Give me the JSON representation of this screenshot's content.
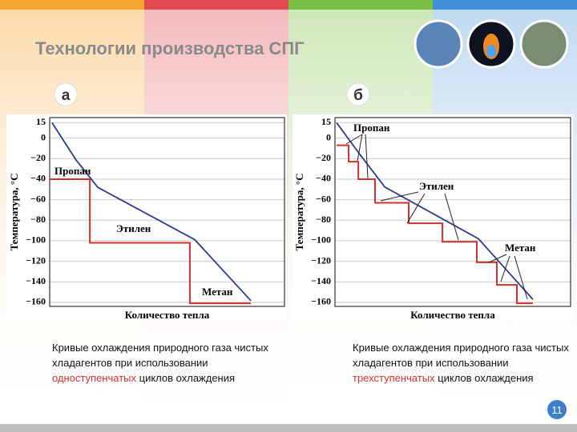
{
  "slide": {
    "title": "Технологии производства СПГ",
    "panel_labels": [
      "а",
      "б"
    ],
    "captions": [
      [
        "Кривые охлаждения природного газа чистых хладагентов при использовании ",
        "одноступенчатых",
        " циклов охлаждения"
      ],
      [
        "Кривые охлаждения природного газа чистых хладагентов при использовании ",
        "трехступенчатых",
        " циклов охлаждения"
      ]
    ],
    "page_number": "11"
  },
  "chart_data": [
    {
      "type": "line",
      "xlabel": "Количество тепла",
      "ylabel": "Температура, °С",
      "xlim": [
        0,
        100
      ],
      "ylim": [
        -164,
        20
      ],
      "yticks": [
        15,
        0,
        {
          "value": -20,
          "label": "−20"
        },
        {
          "value": -40,
          "label": "−40"
        },
        {
          "value": -60,
          "label": "−60"
        },
        {
          "value": -80,
          "label": "−80"
        },
        {
          "value": -100,
          "label": "−100"
        },
        {
          "value": -120,
          "label": "−120"
        },
        {
          "value": -140,
          "label": "−140"
        },
        {
          "value": -160,
          "label": "−160"
        }
      ],
      "grid": true,
      "annotations": [
        "Пропан",
        "Этилен",
        "Метан"
      ],
      "series": [
        {
          "color": "#2b3990",
          "x": [
            1,
            11.3,
            20.5,
            61.8,
            85.7
          ],
          "values": [
            15,
            -21.5,
            -48,
            -99,
            -158.5
          ]
        },
        {
          "color": "#d2312d",
          "x": [
            0,
            17.1,
            17.1,
            59.7,
            59.7,
            85.7
          ],
          "values": [
            -40,
            -40,
            -102,
            -102,
            -161,
            -161
          ]
        }
      ]
    },
    {
      "type": "line",
      "xlabel": "Количество тепла",
      "ylabel": "Температура, °С",
      "xlim": [
        0,
        100
      ],
      "ylim": [
        -164,
        20
      ],
      "yticks": [
        15,
        0,
        {
          "value": -20,
          "label": "−20"
        },
        {
          "value": -40,
          "label": "−40"
        },
        {
          "value": -60,
          "label": "−60"
        },
        {
          "value": -80,
          "label": "−80"
        },
        {
          "value": -100,
          "label": "−100"
        },
        {
          "value": -120,
          "label": "−120"
        },
        {
          "value": -140,
          "label": "−140"
        },
        {
          "value": -160,
          "label": "−160"
        }
      ],
      "grid": true,
      "annotations": [
        "Пропан",
        "Этилен",
        "Метан"
      ],
      "series": [
        {
          "color": "#2b3990",
          "x": [
            0.7,
            9.9,
            21.1,
            60.9,
            84
          ],
          "values": [
            15,
            -13.8,
            -47.6,
            -98.1,
            -157.2
          ]
        },
        {
          "color": "#d2312d",
          "x": [
            0.7,
            5.8,
            5.8,
            9.9,
            9.9,
            17,
            17,
            31.3,
            31.3,
            45.6,
            45.6,
            60.2,
            60.2,
            68.7,
            68.7,
            77.2,
            77.2,
            84
          ],
          "values": [
            -7,
            -7,
            -23,
            -23,
            -40,
            -40,
            -63,
            -63,
            -83,
            -83,
            -101,
            -101,
            -121,
            -121,
            -143,
            -143,
            -161,
            -161
          ]
        }
      ]
    }
  ]
}
